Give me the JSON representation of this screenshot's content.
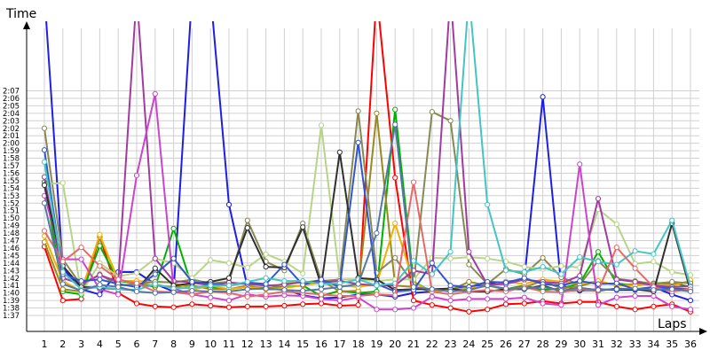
{
  "chart_data": {
    "type": "line",
    "xlabel": "Laps",
    "ylabel": "Time",
    "x": [
      1,
      2,
      3,
      4,
      5,
      6,
      7,
      8,
      9,
      10,
      11,
      12,
      13,
      14,
      15,
      16,
      17,
      18,
      19,
      20,
      21,
      22,
      23,
      24,
      25,
      26,
      27,
      28,
      29,
      30,
      31,
      32,
      33,
      34,
      35,
      36
    ],
    "x_ticks": [
      "1",
      "2",
      "3",
      "4",
      "5",
      "6",
      "7",
      "8",
      "9",
      "10",
      "11",
      "12",
      "13",
      "14",
      "15",
      "16",
      "17",
      "18",
      "19",
      "20",
      "21",
      "22",
      "23",
      "24",
      "25",
      "26",
      "27",
      "28",
      "29",
      "30",
      "31",
      "32",
      "33",
      "34",
      "35",
      "36"
    ],
    "ylim": [
      96,
      128
    ],
    "y_ticks": [
      "1:37",
      "1:38",
      "1:39",
      "1:40",
      "1:41",
      "1:42",
      "1:43",
      "1:44",
      "1:45",
      "1:46",
      "1:47",
      "1:48",
      "1:49",
      "1:50",
      "1:51",
      "1:52",
      "1:53",
      "1:54",
      "1:55",
      "1:56",
      "1:57",
      "1:58",
      "1:59",
      "2:00",
      "2:01",
      "2:02",
      "2:03",
      "2:04",
      "2:05",
      "2:06",
      "2:07"
    ],
    "y_tick_values": [
      97,
      98,
      99,
      100,
      101,
      102,
      103,
      104,
      105,
      106,
      107,
      108,
      109,
      110,
      111,
      112,
      113,
      114,
      115,
      116,
      117,
      118,
      119,
      120,
      121,
      122,
      123,
      124,
      125,
      126,
      127
    ],
    "grid": true,
    "series": [
      {
        "color": "#1e1ee6",
        "values": [
          140,
          103.3,
          100.5,
          99.8,
          102.8,
          102.8,
          101.2,
          100.2,
          140,
          140,
          111.8,
          100.8,
          100.5,
          100.5,
          99.7,
          99.3,
          99.4,
          99.8,
          99.8,
          99.5,
          100,
          100.2,
          100.5,
          100.8,
          101.2,
          101.5,
          101.8,
          126.2,
          101,
          100.3,
          100.5,
          100.4,
          100.4,
          100.8,
          99.8,
          99
        ]
      },
      {
        "color": "#ff0000",
        "values": [
          106.2,
          99,
          99.2,
          107.5,
          100,
          98.6,
          98.2,
          98.1,
          98.5,
          98.3,
          98.1,
          98.2,
          98.2,
          98.3,
          98.5,
          98.6,
          98.3,
          98.4,
          140,
          115.4,
          99,
          98.4,
          98,
          97.5,
          97.8,
          98.5,
          98.6,
          98.9,
          98.6,
          98.8,
          98.8,
          98.2,
          97.8,
          98.2,
          98.5,
          97.5
        ]
      },
      {
        "color": "#00b000",
        "values": [
          114.8,
          100.2,
          99.8,
          106.3,
          101.6,
          101.3,
          100.8,
          108.6,
          100.8,
          100.8,
          100.5,
          100.8,
          100.7,
          100.8,
          101,
          99.6,
          100.3,
          100,
          100.2,
          124.5,
          101.5,
          100.2,
          100.4,
          100.5,
          101,
          100.5,
          101,
          100.4,
          100.6,
          101.3,
          105.5,
          101.3,
          101,
          101.3,
          101.4,
          100.8
        ]
      },
      {
        "color": "#9a8a1e",
        "values": [
          106.8,
          100.5,
          100.2,
          107.5,
          101.8,
          101.2,
          101,
          100.8,
          101,
          100.5,
          100.5,
          101,
          100.5,
          101.3,
          101.4,
          101.7,
          100.2,
          100.3,
          124,
          101,
          100.8,
          100.2,
          100.4,
          101.5,
          101,
          100.5,
          100.8,
          101.6,
          100.6,
          100.9,
          101.6,
          101,
          101.2,
          101.3,
          101.2,
          101.5
        ]
      },
      {
        "color": "#f0b000",
        "values": [
          107.6,
          101.6,
          100.2,
          107.8,
          101.6,
          101.6,
          101.5,
          101.4,
          100.4,
          101,
          100.5,
          100.8,
          100.5,
          100.7,
          101,
          101.4,
          101,
          100.8,
          101.2,
          109.3,
          101.4,
          100.2,
          100.4,
          100.7,
          100.9,
          101.5,
          101.2,
          101.8,
          101.5,
          101.2,
          101.6,
          101,
          101,
          101.2,
          100.9,
          101.7
        ]
      },
      {
        "color": "#888855",
        "values": [
          122,
          104.5,
          101,
          102.5,
          101,
          101.2,
          101.5,
          101.4,
          101.8,
          101.3,
          101.5,
          109.7,
          104.2,
          103,
          109.3,
          101.6,
          101.8,
          124.3,
          102.7,
          104.7,
          101.2,
          124.2,
          123,
          103.8,
          101.2,
          103.2,
          102.5,
          104.7,
          102.1,
          101.1,
          104.3,
          101.9,
          101.6,
          101.2,
          101.5,
          101.3
        ]
      },
      {
        "color": "#b8d488",
        "values": [
          114.5,
          114.7,
          100,
          104,
          102.2,
          102.7,
          104.6,
          104,
          102,
          104.4,
          104,
          103.4,
          105.2,
          104.2,
          102.6,
          122.4,
          101.8,
          101.8,
          101.6,
          101.8,
          101.8,
          104.7,
          104.6,
          104.8,
          104.6,
          104.2,
          103.5,
          103.2,
          103.6,
          103.4,
          111.2,
          109.2,
          103.9,
          104.2,
          102.8,
          102.4
        ]
      },
      {
        "color": "#a23ba0",
        "values": [
          115.5,
          102,
          101.2,
          102.4,
          101.5,
          140,
          104.6,
          101.6,
          101.4,
          101,
          101.4,
          101.2,
          101,
          101.1,
          101.5,
          101.4,
          101.6,
          101.2,
          101,
          101,
          103,
          102.5,
          140,
          105.5,
          101.1,
          101.2,
          101.8,
          101.5,
          101.3,
          102.3,
          112.6,
          101.8,
          101.5,
          101,
          100.8,
          100.9
        ]
      },
      {
        "color": "#cc44cc",
        "values": [
          113,
          104.5,
          104.5,
          100.5,
          99.8,
          115.7,
          126.6,
          100.6,
          99.8,
          99.4,
          99,
          99.8,
          99.5,
          99.7,
          99.6,
          99.2,
          99,
          99.4,
          97.8,
          97.8,
          98,
          99.5,
          99,
          99.2,
          99.2,
          99.2,
          99.4,
          98.6,
          98.4,
          117.2,
          98.4,
          99.4,
          99.6,
          99.6,
          98.2,
          97.8
        ]
      },
      {
        "color": "#303030",
        "values": [
          114.4,
          103.6,
          100.8,
          100.7,
          100.5,
          100.4,
          103.3,
          101,
          101.3,
          101.5,
          102,
          108.7,
          103.5,
          103.4,
          108.8,
          101,
          118.8,
          102,
          101.8,
          100.4,
          100.5,
          100.5,
          100.6,
          100.2,
          100.2,
          100.5,
          100.5,
          101,
          100.2,
          100.4,
          100.3,
          100.6,
          100.5,
          100.2,
          109.3,
          100.3
        ]
      },
      {
        "color": "#3355cc",
        "values": [
          119.1,
          102.5,
          101.6,
          101.8,
          101.2,
          100.8,
          102.5,
          104.6,
          101.5,
          101.2,
          101,
          101.4,
          101.2,
          103.8,
          101.1,
          101.8,
          100.8,
          120.1,
          101.2,
          100.2,
          100.4,
          104,
          101,
          100.8,
          101.5,
          101.4,
          102,
          101.2,
          101,
          101.6,
          101.2,
          101.3,
          100.5,
          100.8,
          100.6,
          100.5
        ]
      },
      {
        "color": "#44c4c4",
        "values": [
          117.5,
          102.8,
          100.5,
          100.8,
          100.5,
          100.4,
          101.2,
          100.6,
          100.7,
          101,
          101,
          101.5,
          102,
          101.6,
          101.6,
          101.2,
          101.3,
          101.8,
          101,
          101.3,
          104.3,
          102.5,
          105.5,
          140,
          111.8,
          103,
          102.8,
          103.5,
          102.5,
          104.8,
          104.2,
          103.8,
          105.6,
          105.2,
          109.7,
          100.8
        ]
      },
      {
        "color": "#e46a6a",
        "values": [
          108.3,
          104.2,
          106.1,
          103.6,
          101.8,
          101.3,
          100.2,
          100.1,
          99.8,
          100.2,
          100,
          99.5,
          99.8,
          100.2,
          100,
          99.8,
          99.6,
          99.6,
          99.8,
          99.7,
          114.8,
          100.2,
          99.8,
          100.2,
          100.4,
          100.2,
          100.8,
          100.2,
          100.1,
          100.5,
          100.3,
          106.1,
          103.3,
          100.8,
          100.2,
          100.5
        ]
      },
      {
        "color": "#5577aa",
        "values": [
          112,
          101.2,
          100.3,
          101.1,
          100.8,
          100.2,
          100,
          100.1,
          100.3,
          100.2,
          100.2,
          100.5,
          100.6,
          100.4,
          100.3,
          100.5,
          100.8,
          101.2,
          108,
          122.5,
          100.8,
          100.5,
          100.2,
          100.4,
          101,
          100.6,
          100.6,
          100.8,
          100.3,
          100.7,
          100.4,
          100.5,
          100.6,
          100.4,
          100.5,
          100.2
        ]
      }
    ]
  }
}
